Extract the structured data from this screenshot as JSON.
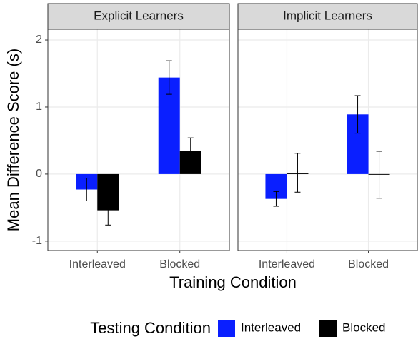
{
  "chart_data": [
    {
      "type": "bar",
      "title": "Explicit Learners",
      "ylabel": "Mean Difference Score (s)",
      "xlabel": "Training Condition",
      "legend_title": "Testing Condition",
      "categories": [
        "Interleaved",
        "Blocked"
      ],
      "series": [
        {
          "name": "Interleaved",
          "color": "#0a1fff",
          "values": [
            -0.23,
            1.44
          ],
          "errors": [
            0.17,
            0.25
          ]
        },
        {
          "name": "Blocked",
          "color": "#000000",
          "values": [
            -0.54,
            0.35
          ],
          "errors": [
            0.22,
            0.19
          ]
        }
      ],
      "ylim": [
        -1.14,
        2.16
      ],
      "yticks": [
        -1,
        0,
        1,
        2
      ],
      "grid": true
    },
    {
      "type": "bar",
      "title": "Implicit Learners",
      "categories": [
        "Interleaved",
        "Blocked"
      ],
      "series": [
        {
          "name": "Interleaved",
          "color": "#0a1fff",
          "values": [
            -0.37,
            0.89
          ],
          "errors": [
            0.11,
            0.28
          ]
        },
        {
          "name": "Blocked",
          "color": "#000000",
          "values": [
            0.02,
            -0.01
          ],
          "errors": [
            0.29,
            0.35
          ]
        }
      ],
      "ylim": [
        -1.14,
        2.16
      ],
      "yticks": [
        -1,
        0,
        1,
        2
      ],
      "grid": true
    }
  ]
}
